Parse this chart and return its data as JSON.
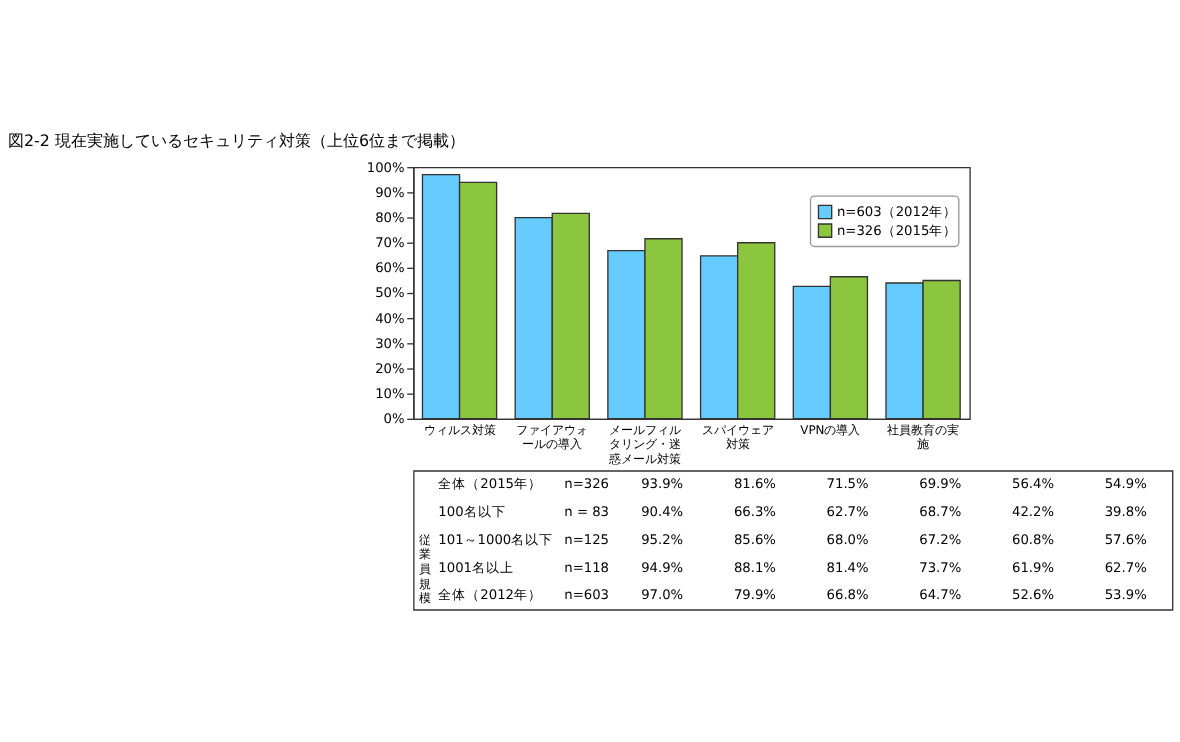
{
  "chart_data": [
    {
      "type": "bar",
      "title": "図2-2 現在実施しているセキュリティ対策（上位6位まで掲載）",
      "categories": [
        "ウィルス対策",
        "ファイアウォールの導入",
        "メールフィルタリング・迷惑メール対策",
        "スパイウェア対策",
        "VPNの導入",
        "社員教育の実施"
      ],
      "series": [
        {
          "name": "n=603（2012年）",
          "color": "#66ccff",
          "values": [
            97.0,
            79.9,
            66.8,
            64.7,
            52.6,
            53.9
          ]
        },
        {
          "name": "n=326（2015年）",
          "color": "#8cc63f",
          "values": [
            93.9,
            81.6,
            71.5,
            69.9,
            56.4,
            54.9
          ]
        }
      ],
      "ylim": [
        0,
        100
      ],
      "yticks": [
        {
          "value": 0,
          "label": "0%"
        },
        {
          "value": 10,
          "label": "10%"
        },
        {
          "value": 20,
          "label": "20%"
        },
        {
          "value": 30,
          "label": "30%"
        },
        {
          "value": 40,
          "label": "40%"
        },
        {
          "value": 50,
          "label": "50%"
        },
        {
          "value": 60,
          "label": "60%"
        },
        {
          "value": 70,
          "label": "70%"
        },
        {
          "value": 80,
          "label": "80%"
        },
        {
          "value": 90,
          "label": "90%"
        },
        {
          "value": 100,
          "label": "100%"
        }
      ],
      "legend": "top right"
    },
    {
      "type": "other",
      "ylabel": "従業員規模",
      "y_categories": [
        "全体（2015年）",
        "100名以下",
        "101～1000名以下",
        "1001名以上",
        "全体（2012年）"
      ],
      "y2_categories": [
        "n=326",
        "n = 83",
        "n=125",
        "n=118",
        "n=603"
      ],
      "cell_labels": [
        [
          "93.9%",
          "81.6%",
          "71.5%",
          "69.9%",
          "56.4%",
          "54.9%"
        ],
        [
          "90.4%",
          "66.3%",
          "62.7%",
          "68.7%",
          "42.2%",
          "39.8%"
        ],
        [
          "95.2%",
          "85.6%",
          "68.0%",
          "67.2%",
          "60.8%",
          "57.6%"
        ],
        [
          "94.9%",
          "88.1%",
          "81.4%",
          "73.7%",
          "61.9%",
          "62.7%"
        ],
        [
          "97.0%",
          "79.9%",
          "66.8%",
          "64.7%",
          "52.6%",
          "53.9%"
        ]
      ]
    }
  ]
}
